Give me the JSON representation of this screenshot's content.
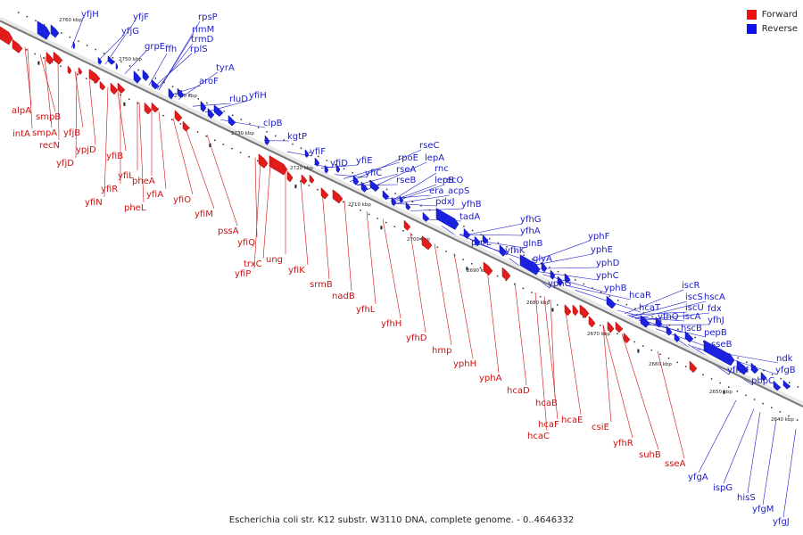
{
  "caption": "Escherichia coli str. K12 substr. W3110 DNA, complete genome. - 0..4646332",
  "legend": [
    {
      "label": "Forward",
      "color": "#ee1111"
    },
    {
      "label": "Reverse",
      "color": "#1111ee"
    }
  ],
  "colors": {
    "forward": "#e21b1b",
    "reverse": "#1a22e0",
    "forward_label": "#cc1111",
    "reverse_label": "#1a1acc",
    "axis": "#777777"
  },
  "scale_labels": [
    "2760 kbp",
    "2750 kbp",
    "2740 kbp",
    "2730 kbp",
    "2720 kbp",
    "2710 kbp",
    "2700 kbp",
    "2690 kbp",
    "2680 kbp",
    "2670 kbp",
    "2660 kbp",
    "2650 kbp",
    "2640 kbp"
  ],
  "reverse_labels": [
    "yfjH",
    "yfjF",
    "yfjG",
    "rpsP",
    "rimM",
    "trmD",
    "rplS",
    "grpE",
    "ffh",
    "tyrA",
    "aroF",
    "yfiH",
    "rluD",
    "clpB",
    "kgtP",
    "yfiF",
    "yfiD",
    "yfiE",
    "yfiC",
    "rseC",
    "rpoE",
    "lepA",
    "rseA",
    "rnc",
    "rseB",
    "lepB",
    "recO",
    "era",
    "acpS",
    "pdxJ",
    "yfhB",
    "tadA",
    "yfhG",
    "yfhA",
    "purL",
    "yfhK",
    "glnB",
    "glyA",
    "yphF",
    "yphE",
    "yphD",
    "yphC",
    "yphG",
    "yphB",
    "hcaR",
    "hcaT",
    "iscR",
    "iscS",
    "hscA",
    "iscU",
    "fdx",
    "yfhQ",
    "iscA",
    "yfhJ",
    "hscB",
    "pepB",
    "sseB",
    "yfhM",
    "ndk",
    "yfgB",
    "pbpC",
    "yfgA",
    "ispG",
    "hisS",
    "yfgM",
    "yfgJ"
  ],
  "forward_labels": [
    "alpA",
    "smpB",
    "intA",
    "smpA",
    "yfjB",
    "recN",
    "ypjD",
    "yfjD",
    "yfiB",
    "yfiL",
    "yfiR",
    "yfiN",
    "pheA",
    "yfiA",
    "pheL",
    "yfiO",
    "yfiM",
    "pssA",
    "yfiQ",
    "trxC",
    "ung",
    "yfiP",
    "yfiK",
    "srmB",
    "nadB",
    "yfhL",
    "yfhH",
    "yfhD",
    "hmp",
    "yphH",
    "yphA",
    "hcaD",
    "hcaB",
    "hcaE",
    "hcaF",
    "hcaC",
    "csiE",
    "yfhR",
    "suhB",
    "sseA"
  ]
}
